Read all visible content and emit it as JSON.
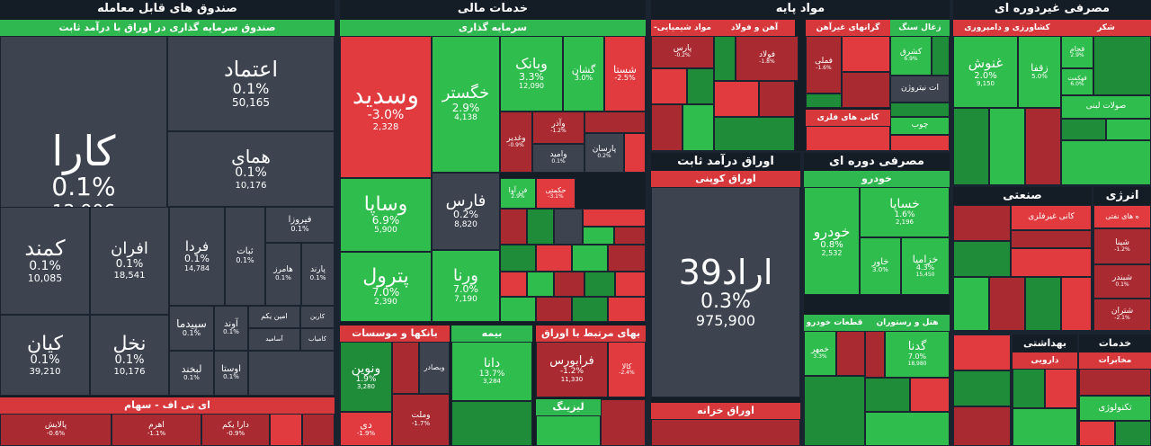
{
  "sections": {
    "funds": "صندوق های قابل معامله",
    "finance": "خدمات مالی",
    "basic": "مواد پایه",
    "durables": "مصرفی غیردوره ای",
    "fixed_income": "اوراق درآمد ثابت",
    "cyclical": "مصرفی دوره ای",
    "industrial": "صنعتی",
    "energy": "انرژی",
    "health": "بهداشتی",
    "telecom": "خدمات ارتباطی"
  },
  "subheaders": {
    "fixed_fund": "صندوق سرمایه گذاری در اوراق با درآمد ثابت",
    "etf": "ای تی اف - سهام",
    "investment": "سرمایه گذاری",
    "bank_credit": "بانکها و موسسات اعتباری",
    "insurance": "بیمه",
    "derived": "بهای مرتبط با اوراق بهادار",
    "leasing": "لیزینگ",
    "coupon": "اوراق کوپنی",
    "treasury": "اوراق خزانه",
    "chemicals": "مواد شیمیایی-متنوع",
    "steel": "آهن و فولاد",
    "nonferrous": "گرانهای غیرآهن",
    "coal": "زغال سنگ",
    "oil": "ات نیتروژن",
    "metal_min": "کانی های فلزی",
    "wood": "چوب",
    "food": "کشاورزی و دامپروری",
    "sugar": "شکر",
    "dairy": "صولات لبنی",
    "cars": "خودرو",
    "parts": "قطعات خودرو",
    "hotels": "هتل و رستوران",
    "cement": "کانی غیرفلزی",
    "refinery": "ه های نفتی",
    "pharma": "دارویی",
    "mobile": "مخابرات",
    "tech": "تکنولوژی"
  },
  "tiles": {
    "kara": {
      "name": "کارا",
      "pct": "0.1%",
      "vol": "12,906"
    },
    "etemad": {
      "name": "اعتماد",
      "pct": "0.1%",
      "vol": "50,165"
    },
    "hamay": {
      "name": "همای",
      "pct": "0.1%",
      "vol": "10,176"
    },
    "kamand": {
      "name": "کمند",
      "pct": "0.1%",
      "vol": "10,085"
    },
    "afran": {
      "name": "افران",
      "pct": "0.1%",
      "vol": "18,541"
    },
    "farda": {
      "name": "فردا",
      "pct": "0.1%",
      "vol": "14,784"
    },
    "sabat": {
      "name": "ثبات",
      "pct": "0.1%"
    },
    "firouza": {
      "name": "فیروزا",
      "pct": "0.1%"
    },
    "hamorz": {
      "name": "هامرز",
      "pct": "0.1%"
    },
    "parand": {
      "name": "پارند",
      "pct": "0.1%"
    },
    "kian": {
      "name": "کیان",
      "pct": "0.1%",
      "vol": "39,210"
    },
    "nakhl": {
      "name": "نخل",
      "pct": "0.1%",
      "vol": "10,176"
    },
    "sepidma": {
      "name": "سپیدما",
      "pct": "0.1%"
    },
    "avand": {
      "name": "آوند",
      "pct": "0.1%"
    },
    "aminyekom": {
      "name": "امین یکم"
    },
    "karin": {
      "name": "کارین"
    },
    "labkhand": {
      "name": "لبخند",
      "pct": "0.1%"
    },
    "avesta": {
      "name": "اوستا",
      "pct": "0.1%"
    },
    "asamid": {
      "name": "آسامید"
    },
    "kamyab": {
      "name": "کامیاب"
    },
    "palayesh": {
      "name": "پالایش",
      "pct": "-0.6%"
    },
    "ahram": {
      "name": "اهرم",
      "pct": "-1.1%"
    },
    "daraikom": {
      "name": "دارا یکم",
      "pct": "-0.9%"
    },
    "vasdid": {
      "name": "وسدید",
      "pct": "-3.0%",
      "vol": "2,328"
    },
    "khegostar": {
      "name": "خگستر",
      "pct": "2.9%",
      "vol": "4,138"
    },
    "vabank": {
      "name": "وبانک",
      "pct": "3.3%",
      "vol": "12,090"
    },
    "gshan": {
      "name": "گشان",
      "pct": "3.0%"
    },
    "shasta": {
      "name": "شستا",
      "pct": "-2.5%"
    },
    "vasapa": {
      "name": "وساپا",
      "pct": "6.9%",
      "vol": "5,900"
    },
    "fars": {
      "name": "فارس",
      "pct": "0.2%",
      "vol": "8,820"
    },
    "petrol": {
      "name": "پترول",
      "pct": "7.0%",
      "vol": "2,390"
    },
    "varna": {
      "name": "ورنا",
      "pct": "7.0%",
      "vol": "7,190"
    },
    "vazar": {
      "name": "وآذر",
      "pct": "-1.2%"
    },
    "vamid": {
      "name": "وامید",
      "pct": "0.1%"
    },
    "parsan": {
      "name": "پارسان",
      "pct": "0.2%"
    },
    "vaghadir": {
      "name": "وغدیر",
      "pct": "-0.9%"
    },
    "vanovin": {
      "name": "ونوین",
      "pct": "1.9%",
      "vol": "3,280"
    },
    "dana": {
      "name": "دانا",
      "pct": "13.7%",
      "vol": "3,284"
    },
    "farabourse": {
      "name": "فرابورس",
      "pct": "-1.2%",
      "vol": "11,330"
    },
    "kala": {
      "name": "کالا",
      "pct": "-2.4%"
    },
    "di": {
      "name": "دی",
      "pct": "-1.9%"
    },
    "vamelat": {
      "name": "وملت",
      "pct": "-1.7%"
    },
    "vabsader": {
      "name": "وبصادر"
    },
    "arad39": {
      "name": "اراد39",
      "pct": "0.3%",
      "vol": "975,900"
    },
    "ghanosh": {
      "name": "غنوش",
      "pct": "2.0%",
      "vol": "9,150"
    },
    "zagfa": {
      "name": "زقفا",
      "pct": "5.0%"
    },
    "kachad": {
      "name": "کچاد"
    },
    "fameli": {
      "name": "فملی",
      "pct": "-1.6%"
    },
    "foolad": {
      "name": "فولاد",
      "pct": "-1.8%"
    },
    "parsan2": {
      "name": "پارس",
      "pct": "-0.2%"
    },
    "kashrag": {
      "name": "کشرق",
      "pct": "6.9%"
    },
    "khodro": {
      "name": "خودرو",
      "pct": "0.8%",
      "vol": "2,532"
    },
    "khasapa": {
      "name": "خساپا",
      "pct": "1.6%",
      "vol": "2,196"
    },
    "khazamia": {
      "name": "خزامیا",
      "pct": "4.3%",
      "vol": "15,450"
    },
    "khavar": {
      "name": "خاور",
      "pct": "3.0%"
    },
    "khamehr": {
      "name": "خمهر",
      "pct": "3.3%"
    },
    "gdana": {
      "name": "گدنا",
      "pct": "7.0%",
      "vol": "18,980"
    },
    "shina": {
      "name": "شینا",
      "pct": "-1.2%"
    },
    "shabandar": {
      "name": "شبندر",
      "pct": "0.1%"
    },
    "shatran": {
      "name": "شتران",
      "pct": "-2.1%"
    },
    "ghadam": {
      "name": "قجام",
      "pct": "2.9%"
    },
    "ghahkamat": {
      "name": "قهکمت",
      "pct": "6.0%"
    },
    "fkaas": {
      "name": "فن آوا",
      "pct": "2.9%"
    },
    "hekmati": {
      "name": "حکمتی",
      "pct": "-3.1%"
    }
  },
  "colors": {
    "green": "#2fbd4d",
    "red": "#e23b3f",
    "gray": "#3d4450",
    "bg": "#141c26"
  }
}
